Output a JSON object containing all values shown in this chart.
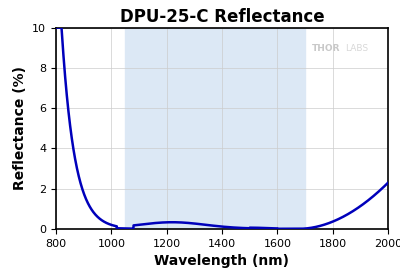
{
  "title": "DPU-25-C Reflectance",
  "xlabel": "Wavelength (nm)",
  "ylabel": "Reflectance (%)",
  "xlim": [
    800,
    2000
  ],
  "ylim": [
    0,
    10
  ],
  "xticks": [
    800,
    1000,
    1200,
    1400,
    1600,
    1800,
    2000
  ],
  "yticks": [
    0,
    2,
    4,
    6,
    8,
    10
  ],
  "shaded_region": [
    1050,
    1700
  ],
  "shaded_color": "#dce8f5",
  "line_color": "#0000bb",
  "line_width": 1.8,
  "grid_color": "#cccccc",
  "background_color": "#ffffff",
  "watermark": "THORLABS",
  "watermark_color": "#c8c8c8",
  "title_fontsize": 12,
  "axis_label_fontsize": 10,
  "tick_fontsize": 8,
  "title_color": "#000000",
  "axis_label_color": "#000000"
}
